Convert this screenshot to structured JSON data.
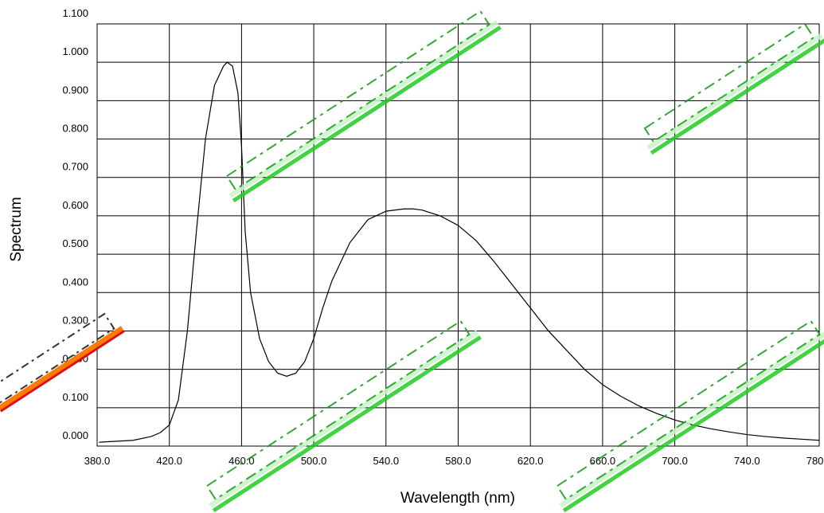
{
  "chart_data": {
    "type": "line",
    "title": "",
    "xlabel": "Wavelength (nm)",
    "ylabel": "Spectrum",
    "xlim": [
      380,
      780
    ],
    "ylim": [
      0,
      1.1
    ],
    "x_ticks": [
      "380.0",
      "420.0",
      "460.0",
      "500.0",
      "540.0",
      "580.0",
      "620.0",
      "660.0",
      "700.0",
      "740.0",
      "780.0"
    ],
    "y_ticks": [
      "0.000",
      "0.100",
      "0.200",
      "0.300",
      "0.400",
      "0.500",
      "0.600",
      "0.700",
      "0.800",
      "0.900",
      "1.000",
      "1.100"
    ],
    "grid": true,
    "legend": "none",
    "line_color": "#000000",
    "watermark_color": "#22cc22",
    "series": [
      {
        "x": [
          381,
          400,
          410,
          415,
          420,
          425,
          430,
          435,
          440,
          445,
          450,
          452,
          455,
          458,
          460,
          462,
          465,
          470,
          475,
          480,
          485,
          490,
          495,
          500,
          505,
          510,
          520,
          530,
          540,
          550,
          555,
          560,
          570,
          580,
          590,
          600,
          610,
          620,
          630,
          640,
          650,
          660,
          670,
          680,
          690,
          700,
          710,
          720,
          730,
          740,
          750,
          760,
          770,
          780
        ],
        "values": [
          0.01,
          0.015,
          0.025,
          0.035,
          0.055,
          0.12,
          0.3,
          0.56,
          0.8,
          0.94,
          0.99,
          1.0,
          0.99,
          0.92,
          0.78,
          0.56,
          0.4,
          0.28,
          0.22,
          0.19,
          0.182,
          0.19,
          0.22,
          0.28,
          0.36,
          0.43,
          0.53,
          0.59,
          0.612,
          0.618,
          0.618,
          0.615,
          0.6,
          0.575,
          0.535,
          0.48,
          0.42,
          0.36,
          0.3,
          0.25,
          0.2,
          0.16,
          0.13,
          0.105,
          0.085,
          0.068,
          0.055,
          0.045,
          0.037,
          0.03,
          0.025,
          0.021,
          0.018,
          0.015
        ]
      }
    ]
  }
}
